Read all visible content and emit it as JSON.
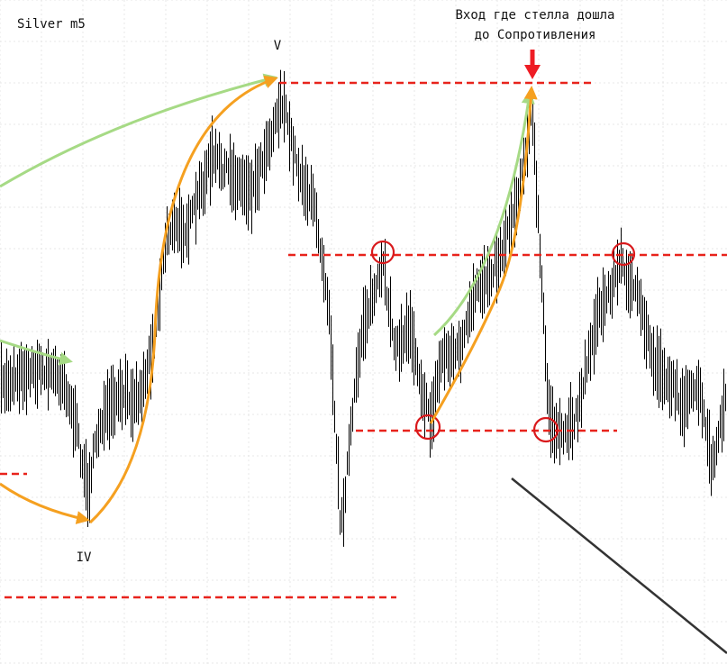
{
  "chart_data": {
    "type": "line",
    "title": "Silver m5",
    "note_lines": [
      "Вход где стелла дошла",
      "до Сопротивления"
    ],
    "wave_labels": [
      "V",
      "IV"
    ],
    "price_series_style": "bars",
    "colors": {
      "bars": "#000000",
      "levels": "#e8231c",
      "circles": "#d9191c",
      "arrow_orange": "#f5a020",
      "arrow_green": "#a6da85",
      "entry_arrow": "#ee1c24",
      "trendline": "#333333",
      "grid": "#e7e7e7"
    },
    "grid": true
  }
}
